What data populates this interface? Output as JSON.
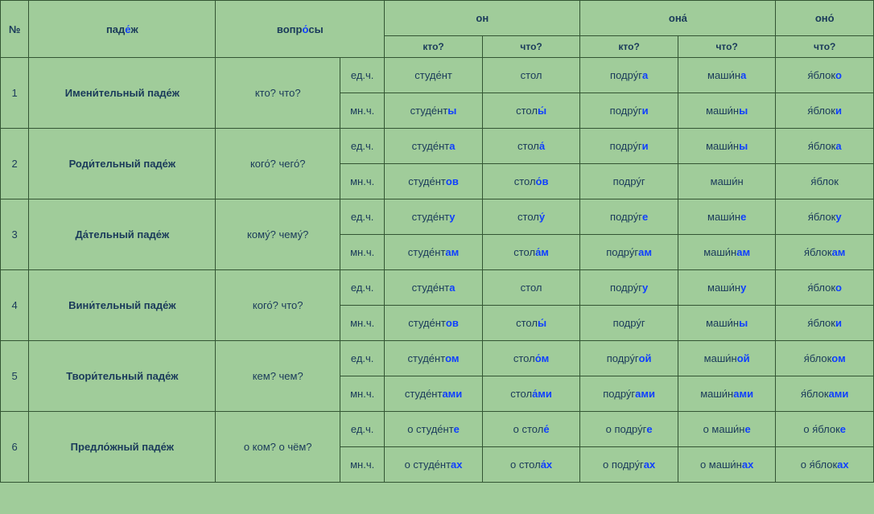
{
  "colors": {
    "background": "#a0cc9a",
    "border": "#335533",
    "text": "#1a3a5a",
    "highlight": "#1040ff"
  },
  "headers": {
    "num": "№",
    "case": "паде́ж",
    "questions": "вопро́сы",
    "on": "он",
    "ona": "она́",
    "ono": "оно́",
    "kto": "кто?",
    "chto": "что?",
    "ed": "ед.ч.",
    "mn": "мн.ч."
  },
  "rows": [
    {
      "num": "1",
      "case": "Имени́тельный паде́ж",
      "question": "кто? что?",
      "sg": {
        "c1": {
          "stem": "студе́нт",
          "end": ""
        },
        "c2": {
          "stem": "стол",
          "end": ""
        },
        "c3": {
          "stem": "подру́г",
          "end": "а"
        },
        "c4": {
          "stem": "маши́н",
          "end": "а"
        },
        "c5": {
          "stem": "я́блок",
          "end": "о"
        }
      },
      "pl": {
        "c1": {
          "stem": "студе́нт",
          "end": "ы"
        },
        "c2": {
          "stem": "стол",
          "end": "ы́"
        },
        "c3": {
          "stem": "подру́г",
          "end": "и"
        },
        "c4": {
          "stem": "маши́н",
          "end": "ы"
        },
        "c5": {
          "stem": "я́блок",
          "end": "и"
        }
      }
    },
    {
      "num": "2",
      "case": "Роди́тельный паде́ж",
      "question": "кого́? чего́?",
      "sg": {
        "c1": {
          "stem": "студе́нт",
          "end": "а"
        },
        "c2": {
          "stem": "стол",
          "end": "а́"
        },
        "c3": {
          "stem": "подру́г",
          "end": "и"
        },
        "c4": {
          "stem": "маши́н",
          "end": "ы"
        },
        "c5": {
          "stem": "я́блок",
          "end": "а"
        }
      },
      "pl": {
        "c1": {
          "stem": "студе́нт",
          "end": "ов"
        },
        "c2": {
          "stem": "стол",
          "end": "о́в"
        },
        "c3": {
          "stem": "подру́г",
          "end": ""
        },
        "c4": {
          "stem": "маши́н",
          "end": ""
        },
        "c5": {
          "stem": "я́блок",
          "end": ""
        }
      }
    },
    {
      "num": "3",
      "case": "Да́тельный паде́ж",
      "question": "кому́? чему́?",
      "sg": {
        "c1": {
          "stem": "студе́нт",
          "end": "у"
        },
        "c2": {
          "stem": "стол",
          "end": "у́"
        },
        "c3": {
          "stem": "подру́г",
          "end": "е"
        },
        "c4": {
          "stem": "маши́н",
          "end": "е"
        },
        "c5": {
          "stem": "я́блок",
          "end": "у"
        }
      },
      "pl": {
        "c1": {
          "stem": "студе́нт",
          "end": "ам"
        },
        "c2": {
          "stem": "стол",
          "end": "а́м"
        },
        "c3": {
          "stem": "подру́г",
          "end": "ам"
        },
        "c4": {
          "stem": "маши́н",
          "end": "ам"
        },
        "c5": {
          "stem": "я́блок",
          "end": "ам"
        }
      }
    },
    {
      "num": "4",
      "case": "Вини́тельный паде́ж",
      "question": "кого́? что?",
      "sg": {
        "c1": {
          "stem": "студе́нт",
          "end": "а"
        },
        "c2": {
          "stem": "стол",
          "end": ""
        },
        "c3": {
          "stem": "подру́г",
          "end": "у"
        },
        "c4": {
          "stem": "маши́н",
          "end": "у"
        },
        "c5": {
          "stem": "я́блок",
          "end": "о"
        }
      },
      "pl": {
        "c1": {
          "stem": "студе́нт",
          "end": "ов"
        },
        "c2": {
          "stem": "стол",
          "end": "ы́"
        },
        "c3": {
          "stem": "подру́г",
          "end": ""
        },
        "c4": {
          "stem": "маши́н",
          "end": "ы"
        },
        "c5": {
          "stem": "я́блок",
          "end": "и"
        }
      }
    },
    {
      "num": "5",
      "case": "Твори́тельный паде́ж",
      "question": "кем? чем?",
      "sg": {
        "c1": {
          "stem": "студе́нт",
          "end": "ом"
        },
        "c2": {
          "stem": "стол",
          "end": "о́м"
        },
        "c3": {
          "stem": "подру́г",
          "end": "ой"
        },
        "c4": {
          "stem": "маши́н",
          "end": "ой"
        },
        "c5": {
          "stem": "я́блок",
          "end": "ом"
        }
      },
      "pl": {
        "c1": {
          "stem": "студе́нт",
          "end": "ами"
        },
        "c2": {
          "stem": "стол",
          "end": "а́ми"
        },
        "c3": {
          "stem": "подру́г",
          "end": "ами"
        },
        "c4": {
          "stem": "маши́н",
          "end": "ами"
        },
        "c5": {
          "stem": "я́блок",
          "end": "ами"
        }
      }
    },
    {
      "num": "6",
      "case": "Предло́жный паде́ж",
      "question": "о ком? о чём?",
      "sg": {
        "c1": {
          "stem": "о студе́нт",
          "end": "е"
        },
        "c2": {
          "stem": "о стол",
          "end": "е́"
        },
        "c3": {
          "stem": "о подру́г",
          "end": "е"
        },
        "c4": {
          "stem": "о маши́н",
          "end": "е"
        },
        "c5": {
          "stem": "о я́блок",
          "end": "е"
        }
      },
      "pl": {
        "c1": {
          "stem": "о студе́нт",
          "end": "ах"
        },
        "c2": {
          "stem": "о стол",
          "end": "а́х"
        },
        "c3": {
          "stem": "о подру́г",
          "end": "ах"
        },
        "c4": {
          "stem": "о маши́н",
          "end": "ах"
        },
        "c5": {
          "stem": "о я́блок",
          "end": "ах"
        }
      }
    }
  ]
}
